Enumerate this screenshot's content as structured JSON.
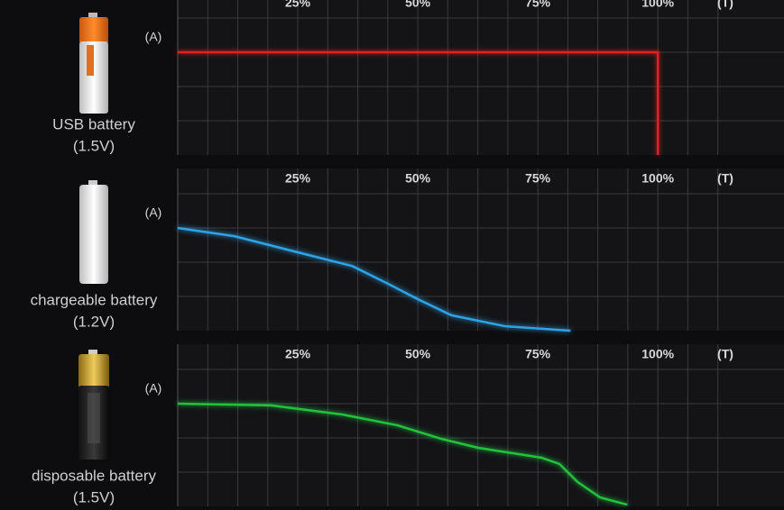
{
  "chart_data": [
    {
      "type": "line",
      "label": "USB battery",
      "voltage": "(1.5V)",
      "ylabel": "(A)",
      "xlabel": "(T)",
      "xlim": [
        0,
        115
      ],
      "xticks": [
        {
          "value": 25,
          "label": "25%"
        },
        {
          "value": 50,
          "label": "50%"
        },
        {
          "value": 75,
          "label": "75%"
        },
        {
          "value": 100,
          "label": "100%"
        }
      ],
      "xgrid": [
        6.25,
        12.5,
        18.75,
        25,
        31.25,
        37.5,
        43.75,
        50,
        56.25,
        62.5,
        68.75,
        75,
        81.25,
        87.5,
        93.75,
        100,
        106.25,
        112.5
      ],
      "ylim": [
        0,
        4
      ],
      "ygrid": [
        1,
        2,
        3,
        4
      ],
      "color": "#e3221e",
      "x": [
        0,
        100,
        100
      ],
      "values": [
        3,
        3,
        0
      ]
    },
    {
      "type": "line",
      "label": "chargeable battery",
      "voltage": "(1.2V)",
      "ylabel": "(A)",
      "xlabel": "(T)",
      "xlim": [
        0,
        115
      ],
      "xticks": [
        {
          "value": 25,
          "label": "25%"
        },
        {
          "value": 50,
          "label": "50%"
        },
        {
          "value": 75,
          "label": "75%"
        },
        {
          "value": 100,
          "label": "100%"
        }
      ],
      "xgrid": [
        6.25,
        12.5,
        18.75,
        25,
        31.25,
        37.5,
        43.75,
        50,
        56.25,
        62.5,
        68.75,
        75,
        81.25,
        87.5,
        93.75,
        100,
        106.25,
        112.5
      ],
      "ylim": [
        0,
        4
      ],
      "ygrid": [
        1,
        2,
        3,
        4
      ],
      "color": "#2ea3e6",
      "x": [
        0,
        11.8,
        25,
        36.3,
        43.8,
        50,
        57,
        68.2,
        81.8
      ],
      "values": [
        3,
        2.76,
        2.29,
        1.89,
        1.37,
        0.92,
        0.45,
        0.13,
        0
      ]
    },
    {
      "type": "line",
      "label": "disposable battery",
      "voltage": "(1.5V)",
      "ylabel": "(A)",
      "xlabel": "(T)",
      "xlim": [
        0,
        115
      ],
      "xticks": [
        {
          "value": 25,
          "label": "25%"
        },
        {
          "value": 50,
          "label": "50%"
        },
        {
          "value": 75,
          "label": "75%"
        },
        {
          "value": 100,
          "label": "100%"
        }
      ],
      "xgrid": [
        6.25,
        12.5,
        18.75,
        25,
        31.25,
        37.5,
        43.75,
        50,
        56.25,
        62.5,
        68.75,
        75,
        81.25,
        87.5,
        93.75,
        100,
        106.25,
        112.5
      ],
      "ylim": [
        0,
        4
      ],
      "ygrid": [
        1,
        2,
        3,
        4
      ],
      "color": "#22c23e",
      "x": [
        0,
        19.4,
        34.4,
        45.7,
        55,
        62.6,
        75.8,
        79.5,
        83.3,
        88,
        93.6
      ],
      "values": [
        3,
        2.95,
        2.68,
        2.37,
        1.97,
        1.71,
        1.42,
        1.24,
        0.71,
        0.26,
        0.05
      ]
    }
  ]
}
